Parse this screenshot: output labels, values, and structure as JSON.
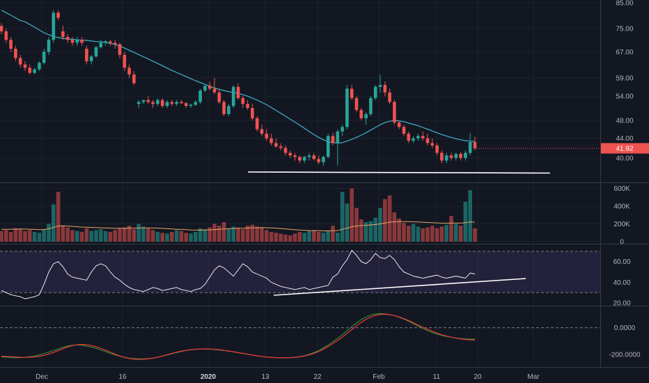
{
  "colors": {
    "background": "#131722",
    "grid": "#1e222d",
    "up": "#26a69a",
    "down": "#ef5350",
    "ma": "#3fb6cc",
    "vol_ma": "#e8a567",
    "rsi_band": "#7e57c2",
    "rsi_line": "#ffffff",
    "macd_green": "#2e9e3e",
    "macd_red": "#e53935",
    "price_badge": "#ef5350",
    "trendline": "#ffffff"
  },
  "chart_data": {
    "type": "candlestick",
    "x_axis": {
      "labels": [
        "Dec",
        "16",
        "2020",
        "13",
        "22",
        "Feb",
        "11",
        "20",
        "Mar"
      ],
      "bold_labels": [
        "2020"
      ]
    },
    "price": {
      "y_ticks": [
        "85.00",
        "75.00",
        "67.00",
        "59.00",
        "54.00",
        "48.00",
        "44.00",
        "40.00"
      ],
      "last_price": "41.92",
      "scale": "log",
      "ylim": [
        36,
        85
      ],
      "candles": [
        [
          76,
          77,
          73,
          74
        ],
        [
          74,
          75,
          70,
          71
        ],
        [
          71,
          72,
          67,
          68
        ],
        [
          68,
          69,
          64,
          65
        ],
        [
          65,
          66,
          62,
          63
        ],
        [
          63,
          64,
          61,
          62
        ],
        [
          62,
          63,
          60,
          60.5
        ],
        [
          60.5,
          62,
          60,
          61.5
        ],
        [
          61.5,
          64,
          61,
          63.5
        ],
        [
          63.5,
          68,
          63,
          67
        ],
        [
          67,
          72,
          66,
          71
        ],
        [
          71,
          82,
          70,
          81
        ],
        [
          81,
          82,
          78,
          79
        ],
        [
          74,
          76,
          71,
          72
        ],
        [
          72,
          73,
          70,
          71
        ],
        [
          71,
          72,
          69,
          70
        ],
        [
          70,
          72,
          69,
          71
        ],
        [
          71,
          72,
          69,
          70
        ],
        [
          68,
          69,
          63,
          64
        ],
        [
          64,
          66,
          63,
          65.5
        ],
        [
          65.5,
          69,
          65,
          68.5
        ],
        [
          68.5,
          71,
          68,
          70
        ],
        [
          70,
          71,
          69,
          70.5
        ],
        [
          70.5,
          71,
          69,
          70
        ],
        [
          70,
          71,
          68,
          69.5
        ],
        [
          69.5,
          70,
          65,
          66
        ],
        [
          66,
          67,
          61,
          62
        ],
        [
          62,
          63,
          59,
          60
        ],
        [
          60,
          61,
          57,
          57.5
        ],
        [
          52,
          53,
          51,
          52.5
        ],
        [
          52.5,
          53,
          52,
          53
        ],
        [
          53,
          54,
          52,
          52.5
        ],
        [
          52.5,
          53,
          51,
          52
        ],
        [
          52,
          53.5,
          51.5,
          53
        ],
        [
          53,
          53.5,
          51,
          51.5
        ],
        [
          51.5,
          53,
          51,
          52.5
        ],
        [
          52.5,
          53,
          51.5,
          52
        ],
        [
          52,
          53,
          51.5,
          52.5
        ],
        [
          52.5,
          53,
          52,
          52.2
        ],
        [
          52.2,
          52.5,
          51,
          51.5
        ],
        [
          51.5,
          52,
          51,
          51.8
        ],
        [
          51.8,
          53,
          51.5,
          52.5
        ],
        [
          52.5,
          56,
          52,
          55.5
        ],
        [
          55.5,
          57,
          55,
          56.8
        ],
        [
          56.8,
          58,
          55.5,
          56
        ],
        [
          56,
          59,
          54.5,
          55
        ],
        [
          55,
          56,
          52,
          52.5
        ],
        [
          52.5,
          53,
          49,
          49.5
        ],
        [
          49.5,
          52,
          49,
          51.5
        ],
        [
          51.5,
          57,
          51,
          56.5
        ],
        [
          56.5,
          57.5,
          53,
          53.5
        ],
        [
          53.5,
          54,
          51,
          52
        ],
        [
          52,
          53,
          50.5,
          51
        ],
        [
          51,
          52,
          48,
          48.5
        ],
        [
          48.5,
          49,
          45.5,
          46
        ],
        [
          46,
          47,
          44.5,
          45
        ],
        [
          45,
          46,
          43.5,
          44
        ],
        [
          44,
          45,
          42.5,
          43
        ],
        [
          43,
          44,
          42,
          42.3
        ],
        [
          42.3,
          43,
          41.5,
          42
        ],
        [
          42,
          42.5,
          40.5,
          41
        ],
        [
          41,
          41.5,
          40,
          40.5
        ],
        [
          40.5,
          41,
          39.5,
          40.2
        ],
        [
          40.2,
          40.5,
          39,
          39.5
        ],
        [
          39.5,
          40.5,
          39,
          40.2
        ],
        [
          40.2,
          41,
          39.5,
          40.5
        ],
        [
          40.5,
          41,
          39.5,
          39.8
        ],
        [
          39.8,
          40.5,
          38.8,
          39.2
        ],
        [
          39.2,
          40.5,
          38.5,
          40.2
        ],
        [
          40.2,
          45,
          40,
          44.5
        ],
        [
          44.5,
          45.2,
          42.5,
          43
        ],
        [
          43,
          46,
          38.5,
          45.5
        ],
        [
          45.5,
          47,
          44.5,
          46.5
        ],
        [
          46.5,
          57,
          46,
          56
        ],
        [
          56,
          57,
          53,
          53.5
        ],
        [
          53.5,
          54,
          50,
          50.5
        ],
        [
          50.5,
          51,
          48,
          48.5
        ],
        [
          48.5,
          50,
          47,
          49.5
        ],
        [
          49.5,
          54,
          49,
          53.5
        ],
        [
          53.5,
          57,
          53,
          56.5
        ],
        [
          56.5,
          60,
          55,
          57
        ],
        [
          57,
          58,
          54,
          55
        ],
        [
          55,
          56,
          52,
          52.5
        ],
        [
          52.5,
          53,
          47,
          47.5
        ],
        [
          47.5,
          48,
          46,
          46.5
        ],
        [
          46.5,
          47,
          44.5,
          45
        ],
        [
          45,
          45.5,
          43,
          43.5
        ],
        [
          43.5,
          44.5,
          43,
          44
        ],
        [
          44,
          45,
          43.5,
          44.5
        ],
        [
          44.5,
          45.5,
          43.5,
          44
        ],
        [
          44,
          45,
          42.5,
          43
        ],
        [
          43,
          44,
          42,
          42.5
        ],
        [
          42.5,
          43,
          40.5,
          41
        ],
        [
          41,
          41.5,
          39,
          39.5
        ],
        [
          39.5,
          41,
          39,
          40.5
        ],
        [
          40.5,
          41,
          39.5,
          40
        ],
        [
          40,
          41,
          39.5,
          40.8
        ],
        [
          40.8,
          41.2,
          39.5,
          40
        ],
        [
          40,
          41.5,
          39.5,
          41
        ],
        [
          41,
          45.2,
          40.5,
          43.2
        ],
        [
          43.2,
          44.3,
          41.5,
          41.92
        ]
      ],
      "ma": [
        82,
        81,
        80,
        79,
        78,
        77.5,
        76.5,
        75.5,
        74.5,
        73.5,
        72.8,
        72.2,
        71.8,
        71.5,
        71.3,
        71.2,
        71,
        70.9,
        70.8,
        70.6,
        70.4,
        70.3,
        70.1,
        69.8,
        69.4,
        68.9,
        68.2,
        67.5,
        66.8,
        66.1,
        65.4,
        64.7,
        64,
        63.3,
        62.6,
        61.9,
        61.2,
        60.6,
        60,
        59.4,
        58.8,
        58.2,
        57.7,
        57.2,
        56.7,
        56.2,
        55.8,
        55.5,
        55.2,
        55,
        54.8,
        54.4,
        54,
        53.5,
        53,
        52.4,
        51.8,
        51.1,
        50.4,
        49.7,
        49,
        48.3,
        47.6,
        46.9,
        46.2,
        45.5,
        44.8,
        44.2,
        43.7,
        43.3,
        43.1,
        43,
        43.1,
        43.4,
        43.8,
        44.2,
        44.7,
        45.2,
        45.8,
        46.4,
        47,
        47.5,
        47.8,
        48,
        47.9,
        47.7,
        47.4,
        47.1,
        46.8,
        46.4,
        46,
        45.6,
        45.2,
        44.8,
        44.5,
        44.2,
        43.9,
        43.7,
        43.5,
        43.4,
        43.3
      ]
    },
    "volume": {
      "y_ticks": [
        "600K",
        "400K",
        "200K",
        "0"
      ],
      "ylim": [
        0,
        620000
      ],
      "values": [
        120000,
        130000,
        110000,
        150000,
        140000,
        120000,
        130000,
        110000,
        100000,
        140000,
        200000,
        420000,
        560000,
        180000,
        160000,
        130000,
        120000,
        110000,
        150000,
        120000,
        130000,
        140000,
        120000,
        110000,
        130000,
        150000,
        160000,
        180000,
        140000,
        200000,
        170000,
        150000,
        130000,
        110000,
        100000,
        90000,
        110000,
        130000,
        120000,
        100000,
        90000,
        110000,
        150000,
        140000,
        160000,
        200000,
        180000,
        220000,
        150000,
        170000,
        160000,
        140000,
        180000,
        190000,
        170000,
        160000,
        130000,
        110000,
        100000,
        90000,
        80000,
        70000,
        90000,
        110000,
        100000,
        120000,
        130000,
        110000,
        100000,
        120000,
        180000,
        100000,
        560000,
        430000,
        600000,
        380000,
        250000,
        220000,
        230000,
        270000,
        380000,
        480000,
        520000,
        330000,
        260000,
        210000,
        180000,
        200000,
        170000,
        150000,
        160000,
        180000,
        150000,
        170000,
        190000,
        290000,
        200000,
        180000,
        450000,
        580000,
        150000
      ],
      "ma": [
        140000,
        140000,
        140000,
        142000,
        143000,
        142000,
        140000,
        138000,
        136000,
        137000,
        145000,
        160000,
        175000,
        178000,
        176000,
        172000,
        168000,
        164000,
        163000,
        160000,
        158000,
        156000,
        154000,
        152000,
        150000,
        150000,
        151000,
        152000,
        152000,
        154000,
        155000,
        155000,
        154000,
        152000,
        150000,
        146000,
        143000,
        140000,
        138000,
        135000,
        132000,
        130000,
        130000,
        131000,
        133000,
        136000,
        139000,
        143000,
        145000,
        148000,
        150000,
        151000,
        153000,
        155000,
        157000,
        158000,
        157000,
        155000,
        152000,
        148000,
        143000,
        138000,
        134000,
        130000,
        127000,
        125000,
        124000,
        123000,
        122000,
        122000,
        124000,
        124000,
        140000,
        152000,
        168000,
        176000,
        181000,
        184000,
        188000,
        193000,
        200000,
        210000,
        220000,
        224000,
        226000,
        226000,
        225000,
        224000,
        222000,
        219000,
        216000,
        214000,
        211000,
        209000,
        208000,
        210000,
        210000,
        209000,
        214000,
        222000,
        220000
      ]
    },
    "rsi": {
      "y_ticks": [
        "60.00",
        "40.00",
        "20.00"
      ],
      "ylim": [
        18,
        76
      ],
      "band": [
        30,
        70
      ],
      "values": [
        32,
        30,
        28,
        27,
        26,
        24,
        25,
        26,
        28,
        38,
        50,
        58,
        60,
        55,
        48,
        45,
        44,
        43,
        42,
        50,
        56,
        58,
        56,
        50,
        45,
        42,
        38,
        35,
        33,
        32,
        31,
        33,
        35,
        34,
        32,
        33,
        34,
        35,
        33,
        32,
        31,
        33,
        34,
        38,
        45,
        52,
        56,
        54,
        50,
        46,
        52,
        58,
        55,
        50,
        48,
        46,
        44,
        40,
        38,
        36,
        35,
        34,
        33,
        34,
        35,
        33,
        34,
        35,
        36,
        37,
        45,
        48,
        56,
        62,
        71,
        66,
        60,
        58,
        62,
        68,
        64,
        63,
        66,
        62,
        55,
        50,
        48,
        46,
        45,
        44,
        45,
        46,
        47,
        45,
        44,
        45,
        46,
        45,
        44,
        49,
        48
      ]
    },
    "macd": {
      "y_ticks": [
        "0.0000",
        "-200.0000"
      ],
      "ylim": [
        -290,
        160
      ],
      "signal_green": [
        -220,
        -222,
        -225,
        -226,
        -225,
        -222,
        -218,
        -212,
        -204,
        -194,
        -183,
        -171,
        -159,
        -148,
        -138,
        -132,
        -130,
        -132,
        -138,
        -146,
        -156,
        -168,
        -180,
        -192,
        -204,
        -214,
        -222,
        -228,
        -232,
        -234,
        -234,
        -232,
        -228,
        -222,
        -214,
        -205,
        -196,
        -187,
        -179,
        -172,
        -167,
        -163,
        -161,
        -161,
        -162,
        -164,
        -168,
        -172,
        -177,
        -182,
        -188,
        -194,
        -200,
        -206,
        -212,
        -217,
        -221,
        -224,
        -226,
        -227,
        -227,
        -225,
        -222,
        -217,
        -210,
        -200,
        -187,
        -171,
        -152,
        -130,
        -106,
        -80,
        -52,
        -22,
        8,
        36,
        60,
        80,
        95,
        103,
        106,
        104,
        98,
        90,
        78,
        64,
        48,
        30,
        12,
        -6,
        -22,
        -36,
        -48,
        -58,
        -66,
        -72,
        -77,
        -81,
        -84,
        -86,
        -87
      ],
      "line_red": [
        -214,
        -216,
        -218,
        -220,
        -222,
        -223,
        -222,
        -220,
        -215,
        -208,
        -198,
        -186,
        -172,
        -158,
        -145,
        -135,
        -128,
        -126,
        -128,
        -134,
        -143,
        -155,
        -169,
        -184,
        -199,
        -212,
        -223,
        -231,
        -236,
        -238,
        -237,
        -234,
        -229,
        -222,
        -213,
        -203,
        -193,
        -184,
        -176,
        -170,
        -165,
        -162,
        -160,
        -159,
        -160,
        -162,
        -165,
        -170,
        -175,
        -181,
        -187,
        -193,
        -199,
        -205,
        -211,
        -216,
        -220,
        -223,
        -225,
        -226,
        -226,
        -225,
        -223,
        -219,
        -213,
        -204,
        -193,
        -179,
        -162,
        -142,
        -120,
        -96,
        -70,
        -42,
        -14,
        14,
        40,
        62,
        80,
        93,
        100,
        101,
        98,
        91,
        81,
        68,
        53,
        37,
        20,
        4,
        -12,
        -27,
        -41,
        -53,
        -63,
        -71,
        -78,
        -84,
        -88,
        -91,
        -93
      ]
    }
  }
}
